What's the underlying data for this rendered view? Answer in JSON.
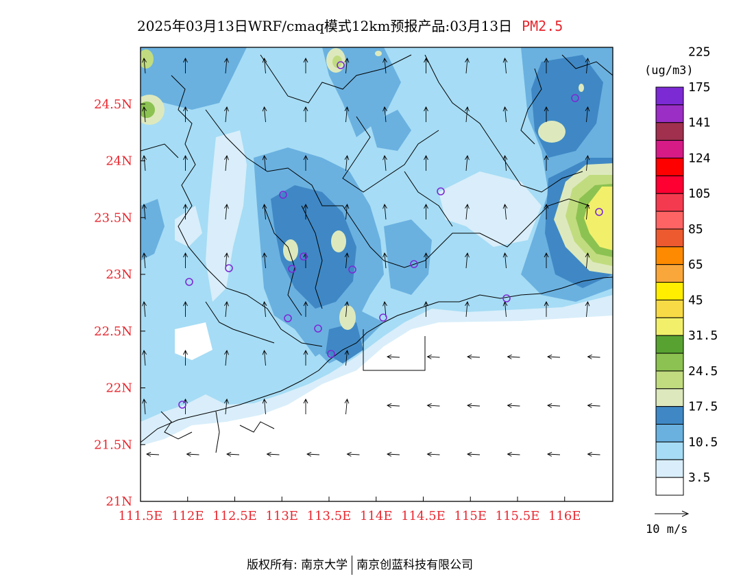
{
  "title": {
    "main": "2025年03月13日WRF/cmaq模式12km预报产品:03月13日",
    "pollutant": "PM2.5"
  },
  "map": {
    "lat_labels": [
      "21N",
      "21.5N",
      "22N",
      "22.5N",
      "23N",
      "23.5N",
      "24N",
      "24.5N"
    ],
    "lon_labels": [
      "111.5E",
      "112E",
      "112.5E",
      "113E",
      "113.5E",
      "114E",
      "114.5E",
      "115E",
      "115.5E",
      "116E"
    ],
    "lat_range": [
      21,
      25
    ],
    "lon_range": [
      111.5,
      116.5
    ],
    "station_marker": "circle",
    "ocean_flow_direction": "westward",
    "land_flow_direction": "northward"
  },
  "colorbar": {
    "unit": "(ug/m3)",
    "colors": [
      "#ffffff",
      "#d9eefa",
      "#a6dcf5",
      "#6ab1e0",
      "#3f88c5",
      "#dde9bd",
      "#c1dc7f",
      "#8cc251",
      "#58a232",
      "#f2f06b",
      "#f7da45",
      "#ffee00",
      "#f9a73b",
      "#fd8a00",
      "#ee5a30",
      "#ff6464",
      "#f43a4f",
      "#fe0032",
      "#ff0000",
      "#d61b86",
      "#a0304e",
      "#9b2ec5",
      "#7c2ad4"
    ],
    "labels": [
      "3.5",
      "10.5",
      "17.5",
      "24.5",
      "31.5",
      "45",
      "65",
      "85",
      "105",
      "124",
      "141",
      "175",
      "225"
    ]
  },
  "wind_legend": {
    "label": "10 m/s"
  },
  "footer": {
    "left": "版权所有: 南京大学",
    "right": "南京创蓝科技有限公司"
  }
}
